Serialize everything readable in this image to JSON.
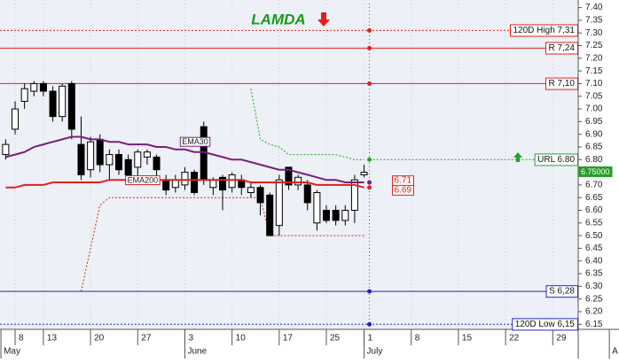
{
  "chart_data": {
    "type": "candlestick",
    "title": "LAMDA",
    "candles": {
      "open": [
        6.82,
        6.92,
        7.03,
        7.07,
        7.1,
        7.07,
        6.97,
        7.1,
        6.86,
        6.76,
        6.88,
        6.78,
        6.82,
        6.8,
        6.77,
        6.81,
        6.81,
        6.72,
        6.69,
        6.7,
        6.75,
        6.93,
        6.69,
        6.73,
        6.69,
        6.72,
        6.67,
        6.69,
        6.66,
        6.54,
        6.77,
        6.7,
        6.7,
        6.55,
        6.6,
        6.6,
        6.56,
        6.6,
        6.74
      ],
      "high": [
        6.88,
        7.03,
        7.1,
        7.11,
        7.11,
        7.09,
        7.1,
        7.11,
        6.97,
        6.89,
        6.9,
        6.84,
        6.84,
        6.82,
        6.84,
        6.84,
        6.82,
        6.74,
        6.74,
        6.77,
        6.76,
        6.95,
        6.73,
        6.74,
        6.75,
        6.74,
        6.71,
        6.7,
        6.67,
        6.74,
        6.77,
        6.74,
        6.72,
        6.68,
        6.62,
        6.62,
        6.62,
        6.74,
        6.78
      ],
      "low": [
        6.8,
        6.9,
        7.0,
        7.05,
        7.05,
        6.95,
        6.95,
        6.88,
        6.72,
        6.73,
        6.75,
        6.72,
        6.74,
        6.7,
        6.73,
        6.78,
        6.72,
        6.66,
        6.67,
        6.68,
        6.66,
        6.7,
        6.66,
        6.6,
        6.67,
        6.66,
        6.65,
        6.58,
        6.5,
        6.5,
        6.68,
        6.68,
        6.6,
        6.52,
        6.55,
        6.54,
        6.54,
        6.55,
        6.73
      ],
      "close": [
        6.86,
        7.0,
        7.08,
        7.1,
        7.07,
        6.97,
        7.09,
        6.92,
        6.74,
        6.87,
        6.78,
        6.82,
        6.76,
        6.74,
        6.83,
        6.83,
        6.76,
        6.68,
        6.72,
        6.75,
        6.67,
        6.72,
        6.72,
        6.68,
        6.74,
        6.69,
        6.69,
        6.63,
        6.5,
        6.72,
        6.7,
        6.73,
        6.63,
        6.67,
        6.56,
        6.56,
        6.6,
        6.72,
        6.75
      ]
    },
    "up_color": "#ffffff",
    "down_color": "#000000",
    "series": [
      {
        "name": "EMA30",
        "color": "#7a1f7a",
        "values": [
          6.81,
          6.82,
          6.83,
          6.85,
          6.86,
          6.87,
          6.88,
          6.89,
          6.89,
          6.88,
          6.88,
          6.87,
          6.87,
          6.86,
          6.86,
          6.86,
          6.85,
          6.85,
          6.84,
          6.84,
          6.83,
          6.83,
          6.82,
          6.81,
          6.8,
          6.8,
          6.79,
          6.78,
          6.77,
          6.76,
          6.76,
          6.75,
          6.74,
          6.73,
          6.72,
          6.72,
          6.71,
          6.71,
          6.71
        ]
      },
      {
        "name": "EMA200",
        "color": "#e0201b",
        "values": [
          6.69,
          6.69,
          6.7,
          6.7,
          6.7,
          6.71,
          6.71,
          6.71,
          6.71,
          6.71,
          6.71,
          6.72,
          6.72,
          6.72,
          6.72,
          6.72,
          6.72,
          6.72,
          6.72,
          6.72,
          6.72,
          6.72,
          6.72,
          6.72,
          6.72,
          6.72,
          6.71,
          6.71,
          6.71,
          6.71,
          6.71,
          6.71,
          6.71,
          6.7,
          6.7,
          6.7,
          6.7,
          6.7,
          6.69
        ]
      }
    ],
    "stops": [
      {
        "color": "#e0201b",
        "values": [
          null,
          null,
          null,
          null,
          null,
          null,
          null,
          null,
          6.28,
          6.45,
          6.62,
          6.65,
          6.65,
          6.65,
          6.65,
          6.65,
          6.65,
          6.65,
          6.65,
          6.65,
          6.65,
          6.65,
          6.65,
          6.65,
          6.65,
          6.65,
          6.65,
          6.65,
          6.5,
          6.5,
          6.5,
          6.5,
          6.5,
          6.5,
          6.5,
          6.5,
          6.5,
          6.5,
          6.5
        ]
      },
      {
        "color": "#2a9d2a",
        "values": [
          null,
          null,
          null,
          null,
          null,
          null,
          null,
          null,
          null,
          null,
          null,
          null,
          null,
          null,
          null,
          null,
          null,
          null,
          null,
          null,
          null,
          null,
          null,
          null,
          null,
          null,
          7.08,
          6.88,
          6.86,
          6.85,
          6.82,
          6.82,
          6.82,
          6.82,
          6.82,
          6.82,
          6.81,
          6.8,
          6.8
        ]
      }
    ],
    "levels": [
      {
        "label": "120D High 7,31",
        "value": 7.31,
        "color": "#e0201b",
        "dash": true,
        "extend": "full"
      },
      {
        "label": "R 7,24",
        "value": 7.24,
        "color": "#e0201b",
        "dash": false,
        "extend": "full"
      },
      {
        "label": "R 7,10",
        "value": 7.1,
        "color": "#e0201b",
        "dash": false,
        "extend": "full"
      },
      {
        "label": "URL 6.80",
        "value": 6.8,
        "color": "#2a9d2a",
        "dash": true,
        "extend": "right"
      },
      {
        "label": "S 6,28",
        "value": 6.28,
        "color": "#2323c8",
        "dash": false,
        "extend": "full"
      },
      {
        "label": "120D Low 6,15",
        "value": 6.15,
        "color": "#2323c8",
        "dash": true,
        "extend": "full"
      }
    ],
    "end_labels": [
      {
        "value": 6.71,
        "label": "6.71",
        "color": "#e0201b"
      },
      {
        "value": 6.69,
        "label": "6.69",
        "color": "#e0201b"
      }
    ],
    "price_label": {
      "value": 6.75,
      "label": "6.75000",
      "color": "#2a9d2a"
    },
    "ylim": [
      6.13,
      7.43
    ],
    "yticks": [
      {
        "value": 7.4,
        "label": "7.40"
      },
      {
        "value": 7.35,
        "label": "7.35"
      },
      {
        "value": 7.3,
        "label": "7.30"
      },
      {
        "value": 7.25,
        "label": "7.25"
      },
      {
        "value": 7.2,
        "label": "7.20"
      },
      {
        "value": 7.15,
        "label": "7.15"
      },
      {
        "value": 7.1,
        "label": "7.10"
      },
      {
        "value": 7.05,
        "label": "7.05"
      },
      {
        "value": 7.0,
        "label": "7.00"
      },
      {
        "value": 6.95,
        "label": "6.95"
      },
      {
        "value": 6.9,
        "label": "6.90"
      },
      {
        "value": 6.85,
        "label": "6.85"
      },
      {
        "value": 6.8,
        "label": "6.80"
      },
      {
        "value": 6.75,
        "label": "6.75"
      },
      {
        "value": 6.7,
        "label": "6.70"
      },
      {
        "value": 6.65,
        "label": "6.65"
      },
      {
        "value": 6.6,
        "label": "6.60"
      },
      {
        "value": 6.55,
        "label": "6.55"
      },
      {
        "value": 6.5,
        "label": "6.50"
      },
      {
        "value": 6.45,
        "label": "6.45"
      },
      {
        "value": 6.4,
        "label": "6.40"
      },
      {
        "value": 6.35,
        "label": "6.35"
      },
      {
        "value": 6.3,
        "label": "6.30"
      },
      {
        "value": 6.25,
        "label": "6.25"
      },
      {
        "value": 6.2,
        "label": "6.20"
      },
      {
        "value": 6.15,
        "label": "6.15"
      }
    ],
    "xlim": [
      -0.6,
      60.7
    ],
    "xticks": [
      {
        "value": 1,
        "label": "8"
      },
      {
        "value": 4,
        "label": "13"
      },
      {
        "value": 9,
        "label": "20"
      },
      {
        "value": 14,
        "label": "27"
      },
      {
        "value": 19,
        "label": "3"
      },
      {
        "value": 24,
        "label": "10"
      },
      {
        "value": 29,
        "label": "17"
      },
      {
        "value": 34,
        "label": "25"
      },
      {
        "value": 38,
        "label": "1"
      },
      {
        "value": 43,
        "label": "8"
      },
      {
        "value": 48,
        "label": "15"
      },
      {
        "value": 53,
        "label": "22"
      },
      {
        "value": 58,
        "label": "29"
      }
    ],
    "months": [
      {
        "value": -0.5,
        "label": "May"
      },
      {
        "value": 19,
        "label": "June"
      },
      {
        "value": 38,
        "label": "July"
      },
      {
        "value": 64,
        "label": "A"
      }
    ],
    "grid": true
  }
}
